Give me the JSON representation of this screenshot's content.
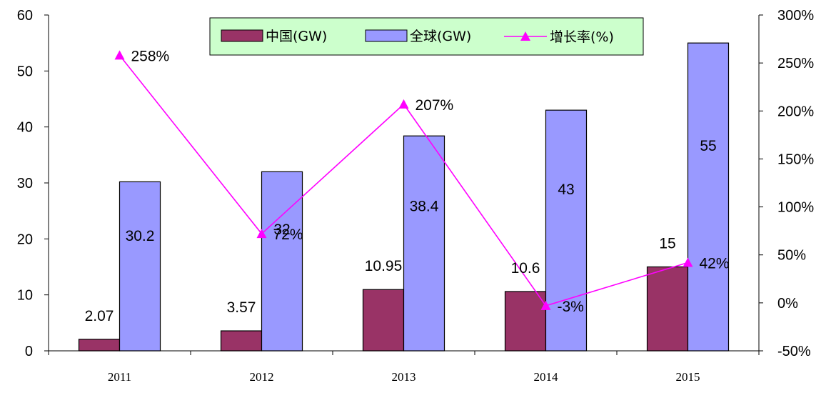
{
  "chart_data": {
    "type": "bar",
    "categories": [
      "2011",
      "2012",
      "2013",
      "2014",
      "2015"
    ],
    "series": [
      {
        "name": "中国(GW)",
        "kind": "bar",
        "axis": "left",
        "color": "#993366",
        "values": [
          2.07,
          3.57,
          10.95,
          10.6,
          15
        ],
        "labels": [
          "2.07",
          "3.57",
          "10.95",
          "10.6",
          "15"
        ]
      },
      {
        "name": "全球(GW)",
        "kind": "bar",
        "axis": "left",
        "color": "#9999ff",
        "values": [
          30.2,
          32,
          38.4,
          43,
          55
        ],
        "labels": [
          "30.2",
          "32",
          "38.4",
          "43",
          "55"
        ]
      },
      {
        "name": "增长率(%)",
        "kind": "line",
        "axis": "right",
        "color": "#ff00ff",
        "values": [
          258,
          72,
          207,
          -3,
          42
        ],
        "labels": [
          "258%",
          "72%",
          "207%",
          "-3%",
          "42%"
        ]
      }
    ],
    "y_left": {
      "min": 0,
      "max": 60,
      "ticks": [
        "0",
        "10",
        "20",
        "30",
        "40",
        "50",
        "60"
      ]
    },
    "y_right": {
      "min": -50,
      "max": 300,
      "ticks": [
        "-50%",
        "0%",
        "50%",
        "100%",
        "150%",
        "200%",
        "250%",
        "300%"
      ]
    },
    "legend": {
      "position": "top-center",
      "background": "#ccffcc"
    },
    "grid": false
  }
}
